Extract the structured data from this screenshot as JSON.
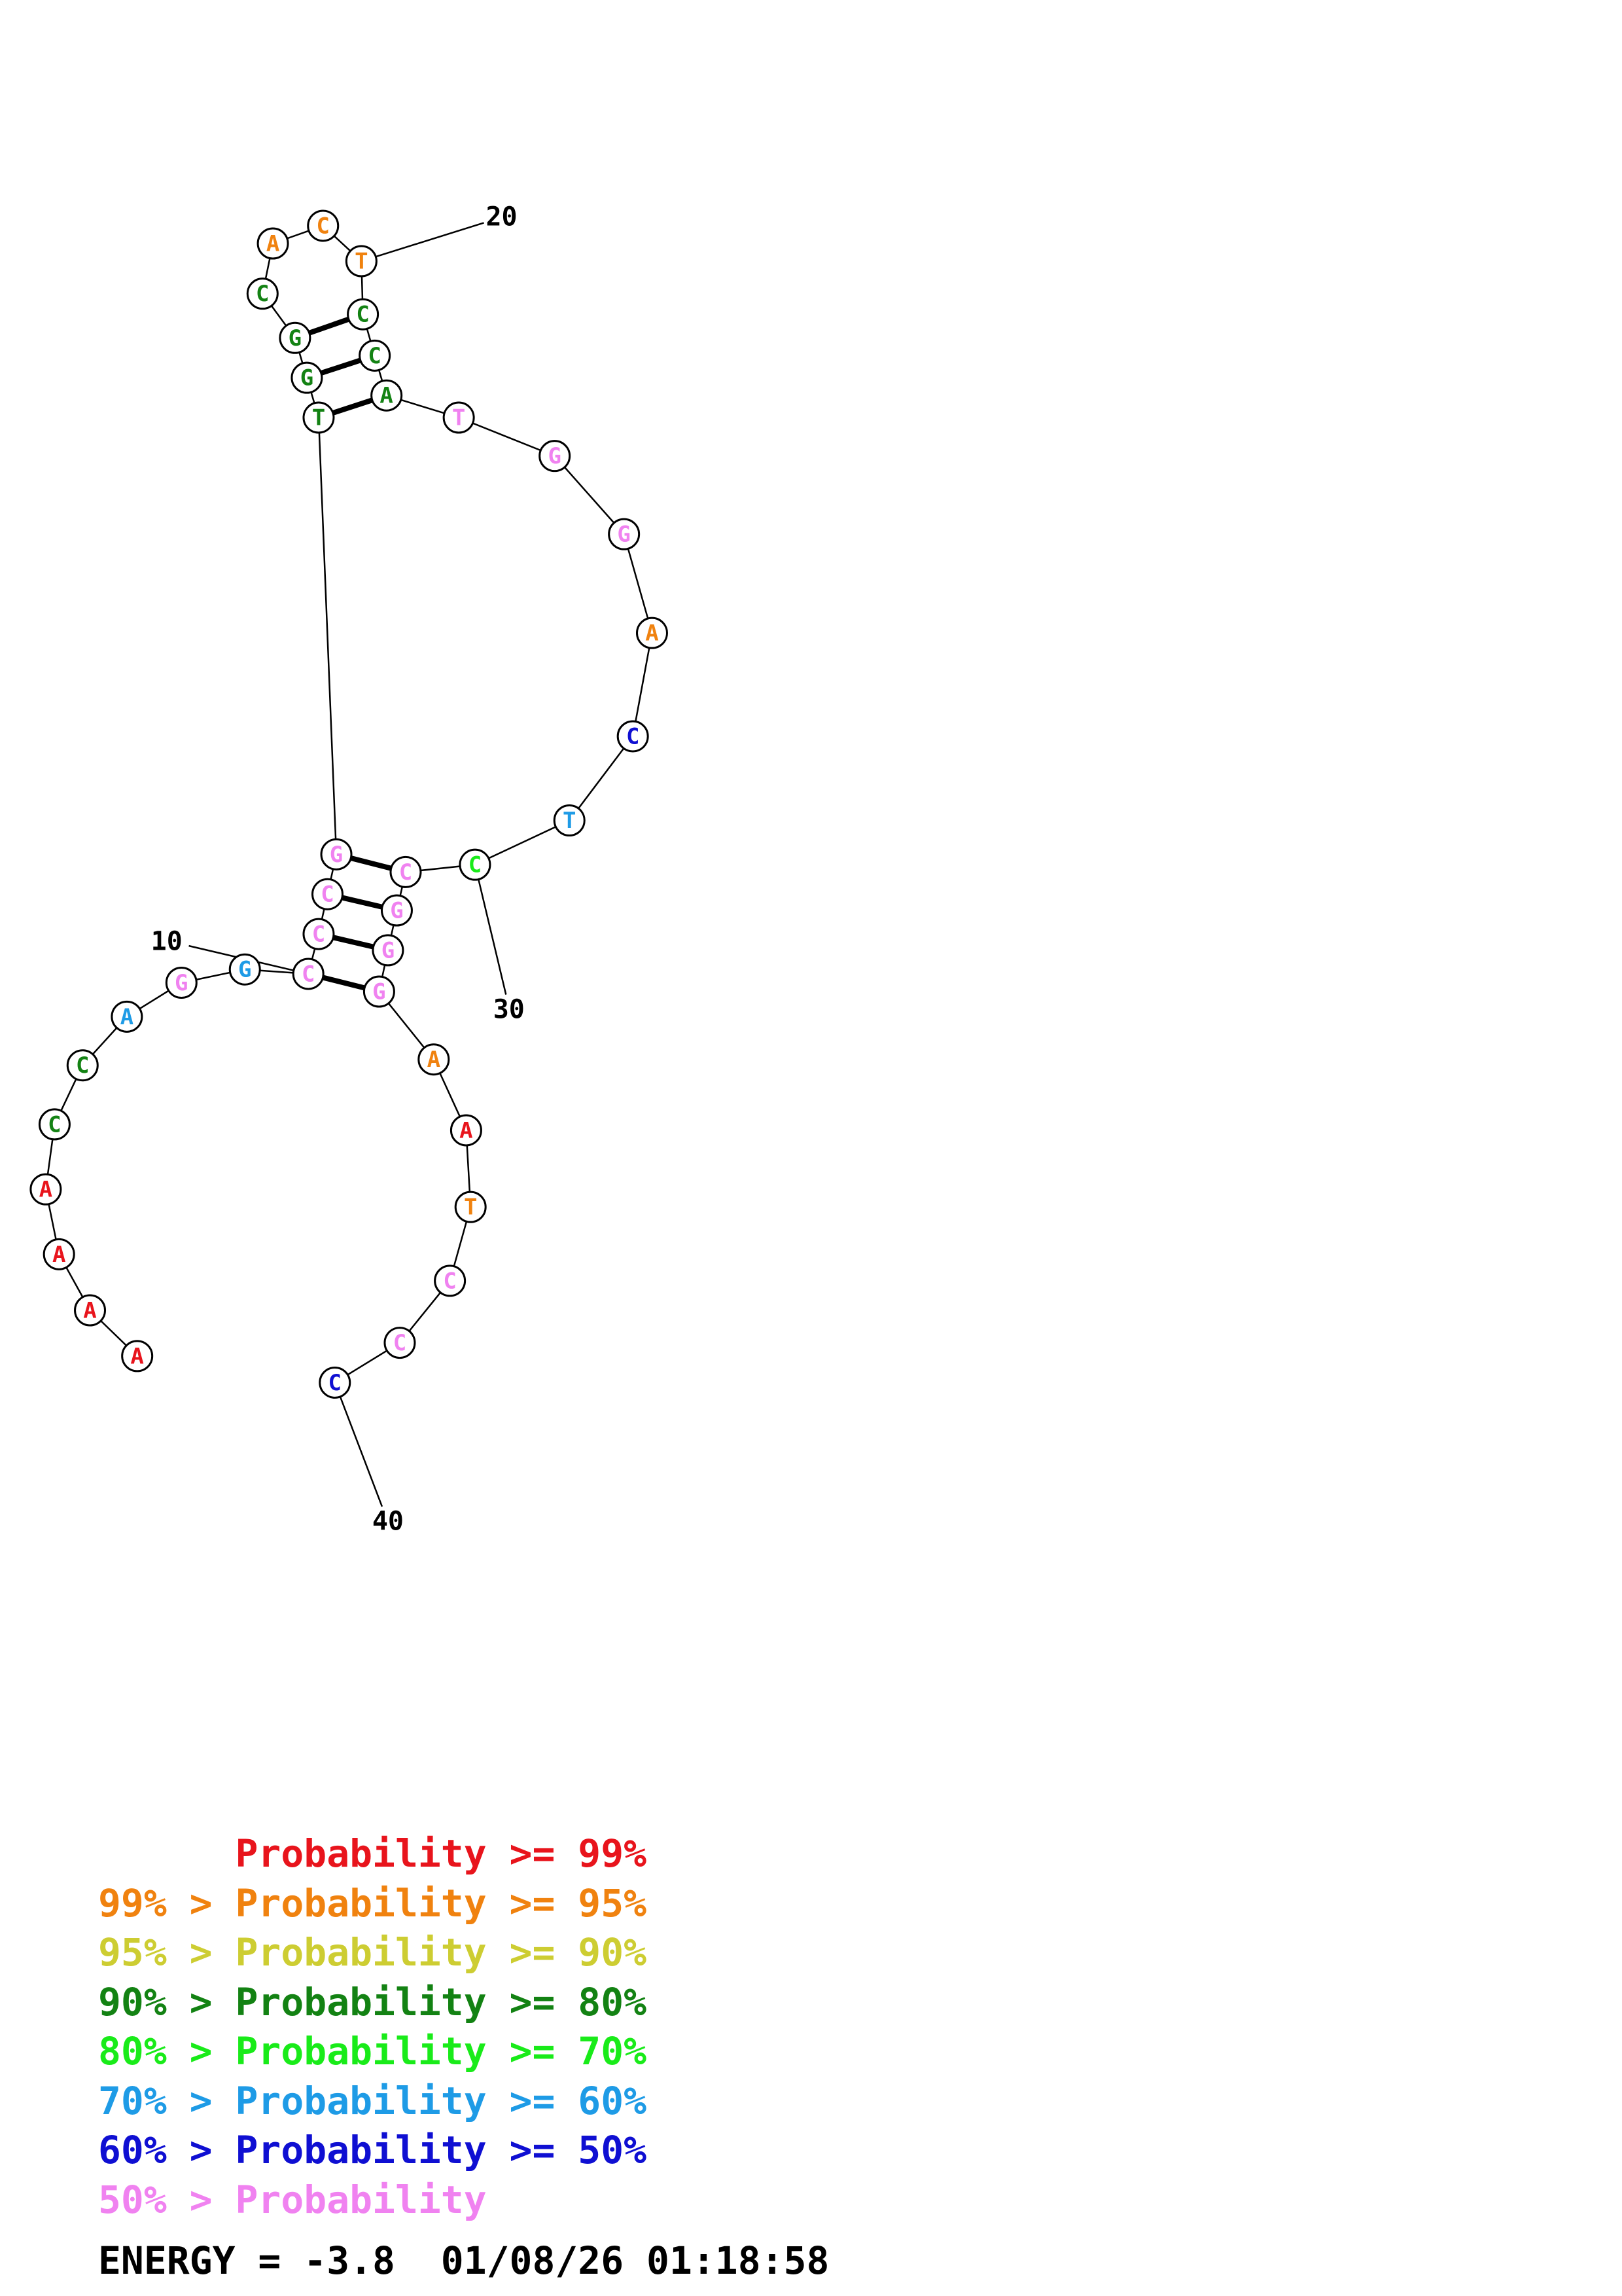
{
  "colors": {
    "p99": "#e8141c",
    "p95": "#f0820f",
    "p90": "#cdcd32",
    "p80": "#138213",
    "p70": "#19eb19",
    "p60": "#1e9be6",
    "p50": "#0f0fd2",
    "plow": "#f082f0"
  },
  "nucleotides": [
    {
      "base": "A",
      "color": "p99"
    },
    {
      "base": "A",
      "color": "p99"
    },
    {
      "base": "A",
      "color": "p99"
    },
    {
      "base": "A",
      "color": "p99"
    },
    {
      "base": "C",
      "color": "p80"
    },
    {
      "base": "C",
      "color": "p80"
    },
    {
      "base": "A",
      "color": "p60"
    },
    {
      "base": "G",
      "color": "plow"
    },
    {
      "base": "G",
      "color": "p60"
    },
    {
      "base": "C",
      "color": "plow"
    },
    {
      "base": "C",
      "color": "plow"
    },
    {
      "base": "C",
      "color": "plow"
    },
    {
      "base": "G",
      "color": "plow"
    },
    {
      "base": "T",
      "color": "p80"
    },
    {
      "base": "G",
      "color": "p80"
    },
    {
      "base": "G",
      "color": "p80"
    },
    {
      "base": "C",
      "color": "p80"
    },
    {
      "base": "A",
      "color": "p95"
    },
    {
      "base": "C",
      "color": "p95"
    },
    {
      "base": "T",
      "color": "p95"
    },
    {
      "base": "C",
      "color": "p80"
    },
    {
      "base": "C",
      "color": "p80"
    },
    {
      "base": "A",
      "color": "p80"
    },
    {
      "base": "T",
      "color": "plow"
    },
    {
      "base": "G",
      "color": "plow"
    },
    {
      "base": "G",
      "color": "plow"
    },
    {
      "base": "A",
      "color": "p95"
    },
    {
      "base": "C",
      "color": "p50"
    },
    {
      "base": "T",
      "color": "p60"
    },
    {
      "base": "C",
      "color": "p70"
    },
    {
      "base": "C",
      "color": "plow"
    },
    {
      "base": "G",
      "color": "plow"
    },
    {
      "base": "G",
      "color": "plow"
    },
    {
      "base": "G",
      "color": "plow"
    },
    {
      "base": "A",
      "color": "p95"
    },
    {
      "base": "A",
      "color": "p99"
    },
    {
      "base": "T",
      "color": "p95"
    },
    {
      "base": "C",
      "color": "plow"
    },
    {
      "base": "C",
      "color": "plow"
    },
    {
      "base": "C",
      "color": "p50"
    }
  ],
  "pairs": [
    [
      10,
      34
    ],
    [
      11,
      33
    ],
    [
      12,
      32
    ],
    [
      13,
      31
    ],
    [
      14,
      23
    ],
    [
      15,
      22
    ],
    [
      16,
      21
    ]
  ],
  "position_labels": [
    {
      "index": 10,
      "text": "10"
    },
    {
      "index": 20,
      "text": "20"
    },
    {
      "index": 30,
      "text": "30"
    },
    {
      "index": 40,
      "text": "40"
    }
  ],
  "legend": [
    {
      "prefix": "",
      "text": "Probability >= 99%",
      "color": "p99"
    },
    {
      "prefix": "99% > ",
      "text": "Probability >= 95%",
      "color": "p95"
    },
    {
      "prefix": "95% > ",
      "text": "Probability >= 90%",
      "color": "p90"
    },
    {
      "prefix": "90% > ",
      "text": "Probability >= 80%",
      "color": "p80"
    },
    {
      "prefix": "80% > ",
      "text": "Probability >= 70%",
      "color": "p70"
    },
    {
      "prefix": "70% > ",
      "text": "Probability >= 60%",
      "color": "p60"
    },
    {
      "prefix": "60% > ",
      "text": "Probability >= 50%",
      "color": "p50"
    },
    {
      "prefix": "50% > ",
      "text": "Probability",
      "color": "plow"
    }
  ],
  "energy_line": "ENERGY = -3.8  01/08/26 01:18:58"
}
